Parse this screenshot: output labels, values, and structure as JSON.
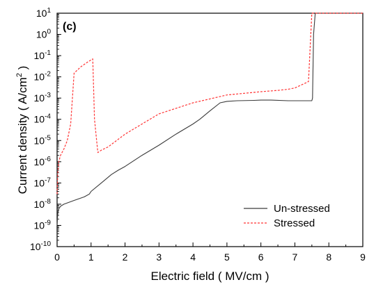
{
  "chart_data": {
    "type": "line",
    "panel_label": "(c)",
    "xlabel": "Electric field ( MV/cm )",
    "ylabel_prefix": "Current density ( A/cm",
    "ylabel_sup": "2",
    "ylabel_suffix": " )",
    "xlim": [
      0,
      9
    ],
    "y_scale": "log",
    "ylim_exp": [
      -10,
      1
    ],
    "x_ticks": [
      0,
      1,
      2,
      3,
      4,
      5,
      6,
      7,
      8,
      9
    ],
    "y_ticks_exp": [
      -10,
      -9,
      -8,
      -7,
      -6,
      -5,
      -4,
      -3,
      -2,
      -1,
      0,
      1
    ],
    "y_tick_base": "10",
    "grid": false,
    "legend_position": "bottom-right",
    "series": [
      {
        "name": "Un-stressed",
        "color": "#3a3a3a",
        "style": "solid",
        "x": [
          0.0,
          0.02,
          0.05,
          0.1,
          0.2,
          0.5,
          0.8,
          0.95,
          1.0,
          1.3,
          1.6,
          1.8,
          2.0,
          2.5,
          3.0,
          3.5,
          4.0,
          4.2,
          4.5,
          4.8,
          5.0,
          5.3,
          5.8,
          6.0,
          6.3,
          6.8,
          7.0,
          7.5,
          7.52,
          7.55,
          7.6,
          8.0,
          9.0
        ],
        "y": [
          1e-09,
          4e-09,
          6e-09,
          8e-09,
          1e-08,
          1.5e-08,
          2.2e-08,
          3e-08,
          4e-08,
          1e-07,
          2.5e-07,
          4e-07,
          6e-07,
          2e-06,
          6e-06,
          2e-05,
          6e-05,
          0.0001,
          0.00025,
          0.0006,
          0.0007,
          0.00075,
          0.00078,
          0.0008,
          0.0008,
          0.00075,
          0.00075,
          0.00075,
          0.001,
          1,
          10,
          10,
          10
        ]
      },
      {
        "name": "Stressed",
        "color": "#ff3333",
        "style": "dashed",
        "x": [
          0.0,
          0.02,
          0.05,
          0.1,
          0.2,
          0.3,
          0.4,
          0.45,
          0.5,
          0.7,
          0.9,
          1.05,
          1.1,
          1.2,
          1.3,
          1.5,
          2.0,
          2.5,
          3.0,
          4.0,
          5.0,
          6.0,
          6.5,
          6.8,
          7.0,
          7.3,
          7.4,
          7.5,
          7.6,
          8.0,
          9.0
        ],
        "y": [
          3e-08,
          3e-07,
          1e-06,
          2e-06,
          4e-06,
          1e-05,
          6e-05,
          0.001,
          0.015,
          0.03,
          0.05,
          0.07,
          0.0001,
          2.7e-06,
          3.5e-06,
          5e-06,
          2e-05,
          6e-05,
          0.00018,
          0.0006,
          0.0014,
          0.002,
          0.0023,
          0.0026,
          0.003,
          0.005,
          0.006,
          10,
          10,
          10,
          10
        ]
      }
    ]
  }
}
